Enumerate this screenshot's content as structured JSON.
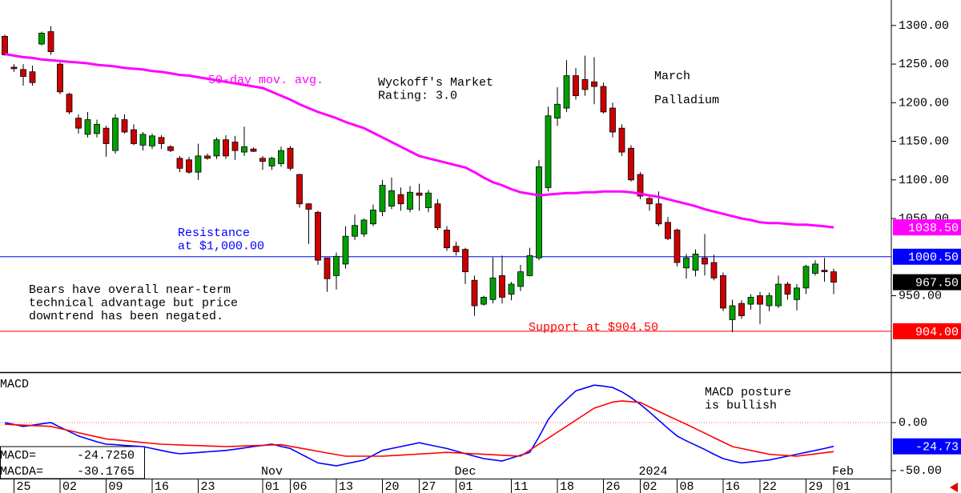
{
  "chart_data": [
    {
      "type": "candlestick",
      "title": [
        "March",
        "Palladium"
      ],
      "up_color": "#00a000",
      "down_color": "#cc0000",
      "open": [
        1286,
        1246,
        1243,
        1240,
        1276,
        1292,
        1250,
        1211,
        1180,
        1159,
        1160,
        1167,
        1138,
        1178,
        1165,
        1145,
        1144,
        1155,
        1143,
        1128,
        1126,
        1110,
        1131,
        1131,
        1152,
        1149,
        1136,
        1140,
        1128,
        1118,
        1121,
        1141,
        1107,
        1069,
        1058,
        999,
        976,
        991,
        1027,
        1030,
        1043,
        1059,
        1066,
        1081,
        1062,
        1083,
        1064,
        1069,
        1035,
        1014,
        1010,
        970,
        939,
        945,
        976,
        952,
        962,
        976,
        999,
        1090,
        1180,
        1193,
        1235,
        1230,
        1227,
        1221,
        1193,
        1167,
        1141,
        1107,
        1076,
        1069,
        1045,
        1035,
        986,
        983,
        999,
        993,
        976,
        919,
        940,
        939,
        950,
        937,
        937,
        965,
        945,
        960,
        979,
        983,
        981
      ],
      "high": [
        1288,
        1250,
        1250,
        1248,
        1292,
        1299,
        1252,
        1213,
        1185,
        1188,
        1178,
        1170,
        1185,
        1185,
        1172,
        1162,
        1160,
        1158,
        1145,
        1131,
        1130,
        1147,
        1134,
        1155,
        1158,
        1157,
        1169,
        1142,
        1131,
        1130,
        1143,
        1144,
        1108,
        1070,
        1060,
        999,
        1006,
        1040,
        1055,
        1050,
        1068,
        1100,
        1103,
        1090,
        1092,
        1095,
        1087,
        1075,
        1040,
        1020,
        1012,
        976,
        950,
        1000,
        1002,
        968,
        990,
        1012,
        1126,
        1195,
        1220,
        1255,
        1245,
        1261,
        1259,
        1226,
        1200,
        1172,
        1145,
        1110,
        1080,
        1085,
        1052,
        1037,
        1004,
        1010,
        1030,
        1003,
        980,
        945,
        944,
        952,
        955,
        954,
        976,
        968,
        965,
        990,
        996,
        999,
        985
      ],
      "low": [
        1261,
        1240,
        1222,
        1222,
        1274,
        1262,
        1211,
        1185,
        1160,
        1155,
        1155,
        1130,
        1134,
        1160,
        1145,
        1138,
        1140,
        1140,
        1136,
        1110,
        1108,
        1100,
        1126,
        1127,
        1127,
        1126,
        1131,
        1136,
        1113,
        1113,
        1117,
        1112,
        1064,
        1017,
        990,
        955,
        958,
        985,
        1022,
        1026,
        1040,
        1053,
        1062,
        1060,
        1058,
        1060,
        1058,
        1035,
        1008,
        1002,
        965,
        924,
        937,
        940,
        940,
        944,
        956,
        975,
        996,
        1085,
        1170,
        1188,
        1204,
        1209,
        1198,
        1186,
        1155,
        1131,
        1098,
        1075,
        1060,
        1040,
        1022,
        988,
        972,
        975,
        976,
        970,
        930,
        903,
        920,
        932,
        913,
        930,
        934,
        945,
        931,
        952,
        976,
        968,
        952
      ],
      "close": [
        1262,
        1244,
        1234,
        1226,
        1290,
        1266,
        1214,
        1188,
        1167,
        1178,
        1172,
        1147,
        1180,
        1162,
        1147,
        1159,
        1157,
        1147,
        1138,
        1115,
        1110,
        1131,
        1128,
        1152,
        1131,
        1138,
        1143,
        1137,
        1124,
        1128,
        1138,
        1115,
        1069,
        1062,
        996,
        972,
        1001,
        1027,
        1041,
        1048,
        1061,
        1093,
        1086,
        1069,
        1084,
        1080,
        1083,
        1038,
        1012,
        1007,
        981,
        937,
        948,
        973,
        948,
        965,
        981,
        1002,
        1117,
        1183,
        1198,
        1235,
        1209,
        1217,
        1221,
        1188,
        1162,
        1136,
        1100,
        1079,
        1069,
        1043,
        1024,
        993,
        999,
        1004,
        991,
        973,
        934,
        937,
        924,
        948,
        939,
        950,
        965,
        952,
        960,
        988,
        991,
        981,
        967.5
      ],
      "series": [
        {
          "color": "#ff00ff",
          "values": [
            1263,
            1261,
            1259,
            1258,
            1256,
            1255,
            1254,
            1253,
            1252,
            1251,
            1249,
            1248,
            1247,
            1245,
            1244,
            1243,
            1241,
            1240,
            1238,
            1236,
            1235,
            1233,
            1231,
            1229,
            1227,
            1225,
            1223,
            1221,
            1219,
            1214,
            1209,
            1204,
            1198,
            1193,
            1188,
            1184,
            1180,
            1175,
            1171,
            1167,
            1161,
            1155,
            1149,
            1143,
            1137,
            1131,
            1128,
            1125,
            1122,
            1119,
            1116,
            1110,
            1103,
            1097,
            1093,
            1088,
            1084,
            1082,
            1080,
            1081,
            1082,
            1083,
            1083,
            1084,
            1084,
            1085,
            1085,
            1085,
            1084,
            1082,
            1080,
            1078,
            1075,
            1072,
            1069,
            1066,
            1062,
            1059,
            1056,
            1053,
            1050,
            1048,
            1045,
            1044,
            1044,
            1043,
            1042,
            1042,
            1041,
            1040,
            1038.5
          ]
        }
      ],
      "ylim": [
        851,
        1333
      ],
      "yticks": [
        {
          "value": 1300,
          "label": "1300.00"
        },
        {
          "value": 1250,
          "label": "1250.00"
        },
        {
          "value": 1200,
          "label": "1200.00"
        },
        {
          "value": 1150,
          "label": "1150.00"
        },
        {
          "value": 1100,
          "label": "1100.00"
        },
        {
          "value": 1050,
          "label": "1050.00"
        },
        {
          "value": 950,
          "label": "950.00"
        }
      ],
      "badges": [
        {
          "value": 1038.5,
          "label": "1038.50",
          "color": "#ff00ff",
          "line": false
        },
        {
          "value": 1000.5,
          "label": "1000.50",
          "color": "#0000ff",
          "line": true
        },
        {
          "value": 967.5,
          "label": "967.50",
          "color": "#000000",
          "line": false
        },
        {
          "value": 904,
          "label": "904.00",
          "color": "#ff0000",
          "line": true
        }
      ],
      "annotations": [
        {
          "lines": [
            "50-day mov. avg."
          ],
          "color": "#ff00ff"
        },
        {
          "lines": [
            "Wyckoff's Market",
            "Rating: 3.0"
          ],
          "color": "#000000"
        },
        {
          "lines": [
            "Resistance",
            "at $1,000.00"
          ],
          "color": "#0000ff"
        },
        {
          "lines": [
            "Bears have overall near-term",
            "technical advantage but price",
            "downtrend has been negated."
          ],
          "color": "#000000"
        },
        {
          "lines": [
            "Support at $904.50"
          ],
          "color": "#ff0000"
        }
      ]
    },
    {
      "type": "line",
      "title": "MACD",
      "categories": [
        null,
        "25",
        null,
        null,
        null,
        null,
        "02",
        null,
        null,
        null,
        null,
        "09",
        null,
        null,
        null,
        null,
        "16",
        null,
        null,
        null,
        null,
        "23",
        null,
        null,
        null,
        null,
        null,
        null,
        "01",
        null,
        null,
        "06",
        null,
        null,
        null,
        null,
        "13",
        null,
        null,
        null,
        null,
        "20",
        null,
        null,
        null,
        "27",
        null,
        null,
        null,
        "01",
        null,
        null,
        null,
        null,
        null,
        "11",
        null,
        null,
        null,
        null,
        "18",
        null,
        null,
        null,
        null,
        "26",
        null,
        null,
        null,
        "02",
        null,
        null,
        null,
        "08",
        null,
        null,
        null,
        null,
        "16",
        null,
        null,
        null,
        "22",
        null,
        null,
        null,
        null,
        "29",
        null,
        null,
        "01"
      ],
      "months": [
        "Nov",
        "Dec",
        "2024",
        "Feb"
      ],
      "series": [
        {
          "color": "#0000ff",
          "values": [
            0,
            -2,
            -4,
            -2.7,
            -1.3,
            0,
            -4.7,
            -9.3,
            -14,
            -17,
            -20,
            -22.5,
            -23,
            -23.8,
            -24.4,
            -25,
            -27,
            -29,
            -31,
            -32.5,
            -31.8,
            -31.1,
            -30.4,
            -29.7,
            -29,
            -27.7,
            -26.4,
            -25,
            -23.8,
            -22.5,
            -24.8,
            -27,
            -32,
            -37,
            -42,
            -43.5,
            -45,
            -43,
            -41,
            -39,
            -34,
            -29,
            -27,
            -25,
            -23,
            -21,
            -23,
            -25,
            -27,
            -29.6,
            -32.3,
            -35,
            -37.5,
            -38.8,
            -40,
            -37,
            -34,
            -31,
            -15,
            3,
            15,
            24,
            33,
            36,
            39,
            38,
            36.5,
            32,
            26,
            19,
            11,
            2.5,
            -6,
            -14,
            -19,
            -23.5,
            -28,
            -33,
            -37.5,
            -40,
            -42,
            -41,
            -40,
            -39,
            -37,
            -35,
            -33,
            -31,
            -29,
            -27,
            -24.725
          ]
        },
        {
          "color": "#ff0000",
          "values": [
            -1.7,
            -2.2,
            -2.6,
            -3.1,
            -3.5,
            -4,
            -6.2,
            -8.3,
            -10.5,
            -12.7,
            -14.8,
            -17,
            -17.9,
            -18.8,
            -19.8,
            -20.7,
            -21.6,
            -22.5,
            -22.9,
            -23.2,
            -23.6,
            -23.9,
            -24.3,
            -24.6,
            -25,
            -24.7,
            -24.3,
            -24,
            -23.7,
            -23.3,
            -23,
            -24.7,
            -26.4,
            -28.1,
            -29.9,
            -31.6,
            -33.3,
            -35,
            -35,
            -35,
            -35,
            -35,
            -34.4,
            -33.9,
            -33.3,
            -32.7,
            -32.1,
            -31.6,
            -31,
            -31.5,
            -32,
            -32.5,
            -33,
            -33.5,
            -34,
            -34.5,
            -35,
            -28.8,
            -22.5,
            -16.3,
            -10,
            -3.8,
            2.5,
            8.8,
            15,
            18.2,
            21.4,
            22.6,
            21.8,
            21,
            16.3,
            11.7,
            7.1,
            2.7,
            -1.7,
            -6.4,
            -11,
            -15.7,
            -20.3,
            -25,
            -27,
            -29,
            -31,
            -33,
            -33.7,
            -34.3,
            -35,
            -33.8,
            -32.6,
            -31.4,
            -30.1765
          ]
        }
      ],
      "ylim": [
        -58.3,
        51.7
      ],
      "yticks": [
        {
          "value": 0,
          "label": "0.00"
        },
        {
          "value": -50,
          "label": "-50.00"
        }
      ],
      "zero_line": true,
      "badges": [
        {
          "value": -24.725,
          "label": "-24.73",
          "color": "#0000ff",
          "line": false
        }
      ],
      "readouts": [
        {
          "label": "MACD=",
          "value": "-24.7250"
        },
        {
          "label": "MACDA=",
          "value": "-30.1765"
        }
      ],
      "annotations": [
        {
          "lines": [
            "MACD posture",
            "is bullish"
          ],
          "color": "#000000"
        }
      ]
    }
  ]
}
